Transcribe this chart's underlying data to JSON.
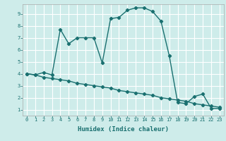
{
  "xlabel": "Humidex (Indice chaleur)",
  "ylabel": "",
  "bg_color": "#ceecea",
  "line_color": "#1a7070",
  "grid_color": "#ffffff",
  "x_main": [
    0,
    1,
    2,
    3,
    4,
    5,
    6,
    7,
    8,
    9,
    10,
    11,
    12,
    13,
    14,
    15,
    16,
    17,
    18,
    19,
    20,
    21,
    22,
    23
  ],
  "y_main": [
    4.0,
    3.9,
    4.1,
    3.9,
    7.7,
    6.5,
    7.0,
    7.0,
    7.0,
    4.9,
    8.6,
    8.7,
    9.3,
    9.5,
    9.5,
    9.2,
    8.4,
    5.5,
    1.6,
    1.5,
    2.1,
    2.3,
    1.1,
    1.1
  ],
  "x_ref": [
    0,
    1,
    2,
    3,
    4,
    5,
    6,
    7,
    8,
    9,
    10,
    11,
    12,
    13,
    14,
    15,
    16,
    17,
    18,
    19,
    20,
    21,
    22,
    23
  ],
  "y_ref": [
    4.0,
    3.9,
    3.7,
    3.6,
    3.5,
    3.4,
    3.2,
    3.1,
    3.0,
    2.9,
    2.8,
    2.6,
    2.5,
    2.4,
    2.3,
    2.2,
    2.0,
    1.9,
    1.8,
    1.7,
    1.5,
    1.4,
    1.3,
    1.2
  ],
  "xlim": [
    -0.5,
    23.5
  ],
  "ylim": [
    0.5,
    9.8
  ],
  "xticks": [
    0,
    1,
    2,
    3,
    4,
    5,
    6,
    7,
    8,
    9,
    10,
    11,
    12,
    13,
    14,
    15,
    16,
    17,
    18,
    19,
    20,
    21,
    22,
    23
  ],
  "yticks": [
    1,
    2,
    3,
    4,
    5,
    6,
    7,
    8,
    9
  ],
  "marker": "D",
  "markersize": 2.2,
  "linewidth": 1.0,
  "xlabel_fontsize": 6.5,
  "tick_fontsize": 5.0
}
